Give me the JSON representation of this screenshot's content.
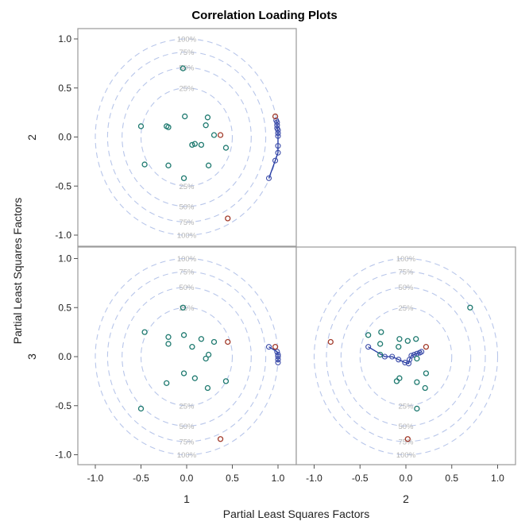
{
  "chart_data": {
    "type": "scatter",
    "title": "Correlation Loading Plots",
    "xlabel": "Partial Least Squares Factors",
    "ylabel": "Partial Least Squares Factors",
    "row_labels": [
      "2",
      "3"
    ],
    "col_labels": [
      "1",
      "2"
    ],
    "ticks": [
      "-1.0",
      "-0.5",
      "0.0",
      "0.5",
      "1.0"
    ],
    "tick_values": [
      -1,
      -0.5,
      0,
      0.5,
      1
    ],
    "xlim": [
      -1.1,
      1.1
    ],
    "ylim": [
      -1.1,
      1.1
    ],
    "circles": [
      {
        "label": "100%",
        "radius": 1.0
      },
      {
        "label": "75%",
        "radius": 0.866
      },
      {
        "label": "50%",
        "radius": 0.707
      },
      {
        "label": "25%",
        "radius": 0.5
      }
    ],
    "colors": {
      "predictors": "#1f7a70",
      "responses": "#a23b2b",
      "observations": "#3a4aa8",
      "observation_line": "#1f36a0",
      "circles": "#b8c6ea",
      "frame": "#9a9a9a"
    },
    "panels": [
      {
        "x_factor": 1,
        "y_factor": 2,
        "predictors": [
          [
            -0.04,
            0.7
          ],
          [
            -0.02,
            0.21
          ],
          [
            0.23,
            0.2
          ],
          [
            -0.5,
            0.11
          ],
          [
            -0.22,
            0.11
          ],
          [
            -0.2,
            0.1
          ],
          [
            0.21,
            0.12
          ],
          [
            0.3,
            0.02
          ],
          [
            0.06,
            -0.08
          ],
          [
            0.09,
            -0.07
          ],
          [
            0.16,
            -0.08
          ],
          [
            0.43,
            -0.11
          ],
          [
            -0.46,
            -0.28
          ],
          [
            -0.2,
            -0.29
          ],
          [
            0.24,
            -0.29
          ],
          [
            -0.03,
            -0.42
          ]
        ],
        "responses": [
          [
            0.37,
            0.02
          ],
          [
            0.97,
            0.21
          ],
          [
            0.45,
            -0.83
          ]
        ],
        "observations": [
          [
            0.9,
            -0.42
          ],
          [
            0.97,
            -0.24
          ],
          [
            1.0,
            -0.16
          ],
          [
            1.0,
            -0.09
          ],
          [
            1.0,
            0.01
          ],
          [
            1.0,
            0.04
          ],
          [
            1.0,
            0.07
          ],
          [
            0.99,
            0.09
          ],
          [
            0.99,
            0.12
          ],
          [
            0.99,
            0.15
          ],
          [
            0.98,
            0.17
          ]
        ]
      },
      {
        "x_factor": 1,
        "y_factor": 3,
        "predictors": [
          [
            -0.04,
            0.5
          ],
          [
            -0.46,
            0.25
          ],
          [
            -0.2,
            0.2
          ],
          [
            -0.2,
            0.13
          ],
          [
            -0.03,
            0.22
          ],
          [
            0.16,
            0.18
          ],
          [
            0.3,
            0.15
          ],
          [
            0.06,
            0.1
          ],
          [
            0.24,
            0.02
          ],
          [
            0.21,
            -0.02
          ],
          [
            -0.03,
            -0.17
          ],
          [
            0.09,
            -0.22
          ],
          [
            -0.22,
            -0.27
          ],
          [
            0.43,
            -0.25
          ],
          [
            0.23,
            -0.32
          ],
          [
            -0.5,
            -0.53
          ]
        ],
        "responses": [
          [
            0.45,
            0.15
          ],
          [
            0.97,
            0.1
          ],
          [
            0.37,
            -0.84
          ]
        ],
        "observations": [
          [
            0.9,
            0.1
          ],
          [
            0.99,
            0.05
          ],
          [
            1.0,
            0.02
          ],
          [
            1.0,
            0.0
          ],
          [
            1.0,
            -0.03
          ],
          [
            1.0,
            -0.06
          ]
        ]
      },
      {
        "x_factor": 2,
        "y_factor": 3,
        "predictors": [
          [
            0.7,
            0.5
          ],
          [
            -0.41,
            0.22
          ],
          [
            -0.27,
            0.25
          ],
          [
            -0.28,
            0.13
          ],
          [
            -0.07,
            0.18
          ],
          [
            0.02,
            0.16
          ],
          [
            0.11,
            0.18
          ],
          [
            -0.08,
            0.1
          ],
          [
            -0.28,
            0.02
          ],
          [
            0.12,
            -0.02
          ],
          [
            0.22,
            -0.17
          ],
          [
            -0.07,
            -0.22
          ],
          [
            -0.1,
            -0.25
          ],
          [
            0.12,
            -0.26
          ],
          [
            0.21,
            -0.32
          ],
          [
            0.12,
            -0.53
          ]
        ],
        "responses": [
          [
            -0.82,
            0.15
          ],
          [
            0.22,
            0.1
          ],
          [
            0.02,
            -0.84
          ]
        ],
        "observations": [
          [
            -0.41,
            0.1
          ],
          [
            -0.23,
            0.0
          ],
          [
            -0.15,
            0.0
          ],
          [
            -0.08,
            -0.03
          ],
          [
            -0.01,
            -0.06
          ],
          [
            0.03,
            -0.07
          ],
          [
            0.04,
            -0.03
          ],
          [
            0.06,
            0.01
          ],
          [
            0.09,
            0.02
          ],
          [
            0.12,
            0.03
          ],
          [
            0.15,
            0.04
          ],
          [
            0.17,
            0.05
          ]
        ]
      }
    ]
  }
}
